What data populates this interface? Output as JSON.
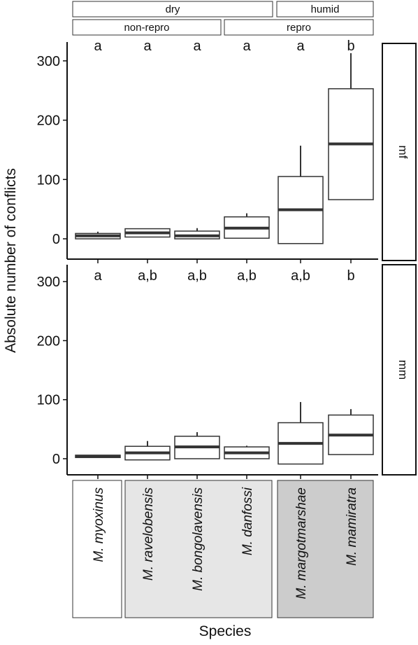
{
  "chart_data": {
    "type": "boxplot",
    "xlabel": "Species",
    "ylabel": "Absolute number of conflicts",
    "ylim": [
      -12,
      335
    ],
    "yticks": [
      0,
      100,
      200,
      300
    ],
    "categories": [
      "M. myoxinus",
      "M. ravelobensis",
      "M. bongolavensis",
      "M. danfossi",
      "M. margotmarshae",
      "M. mamiratra"
    ],
    "habitat_strips": [
      {
        "label": "dry",
        "from": 0,
        "to": 3
      },
      {
        "label": "humid",
        "from": 4,
        "to": 5
      }
    ],
    "repro_strips": [
      {
        "label": "non-repro",
        "from": 0,
        "to": 2
      },
      {
        "label": "repro",
        "from": 3,
        "to": 5
      }
    ],
    "species_groups": [
      {
        "from": 0,
        "to": 0,
        "fill": "#ffffff"
      },
      {
        "from": 1,
        "to": 3,
        "fill": "#e6e6e6"
      },
      {
        "from": 4,
        "to": 5,
        "fill": "#cccccc"
      }
    ],
    "panels": [
      {
        "label": "mf",
        "letters": [
          "a",
          "a",
          "a",
          "a",
          "a",
          "b"
        ],
        "boxes": [
          {
            "min": 0,
            "q1": 0,
            "median": 5,
            "q3": 9,
            "max": 12
          },
          {
            "min": 3,
            "q1": 3,
            "median": 10,
            "q3": 17,
            "max": 17
          },
          {
            "min": 0,
            "q1": 0,
            "median": 5,
            "q3": 13,
            "max": 18
          },
          {
            "min": 1,
            "q1": 1,
            "median": 18,
            "q3": 37,
            "max": 43
          },
          {
            "min": -8,
            "q1": -8,
            "median": 49,
            "q3": 105,
            "max": 157
          },
          {
            "min": 66,
            "q1": 66,
            "median": 160,
            "q3": 253,
            "max": 313
          }
        ]
      },
      {
        "label": "mm",
        "letters": [
          "a",
          "a,b",
          "a,b",
          "a,b",
          "a,b",
          "b"
        ],
        "boxes": [
          {
            "min": 2,
            "q1": 2,
            "median": 4,
            "q3": 6,
            "max": 6
          },
          {
            "min": -2,
            "q1": -2,
            "median": 10,
            "q3": 21,
            "max": 30
          },
          {
            "min": 0,
            "q1": 0,
            "median": 20,
            "q3": 38,
            "max": 45
          },
          {
            "min": 0,
            "q1": 0,
            "median": 10,
            "q3": 20,
            "max": 22
          },
          {
            "min": -9,
            "q1": -9,
            "median": 26,
            "q3": 61,
            "max": 96
          },
          {
            "min": 7,
            "q1": 7,
            "median": 40,
            "q3": 74,
            "max": 84
          }
        ]
      }
    ]
  }
}
